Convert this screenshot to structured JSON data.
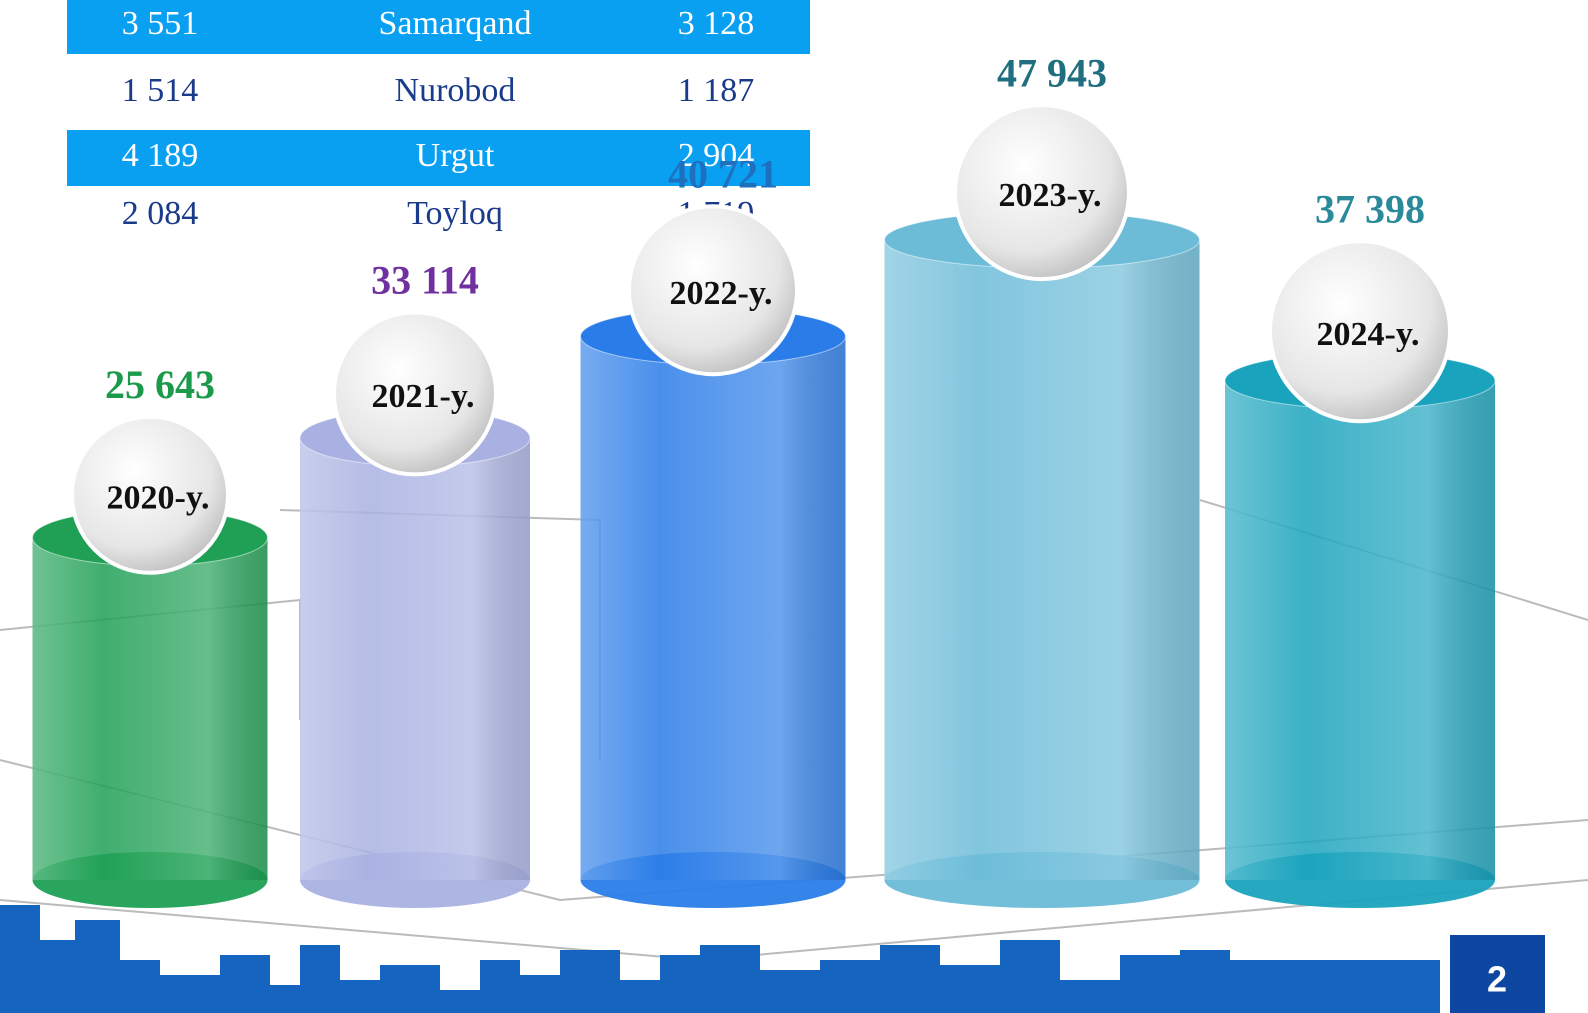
{
  "table": {
    "rows": [
      [
        "3 551",
        "Samarqand",
        "3 128"
      ],
      [
        "1 514",
        "Nurobod",
        "1 187"
      ],
      [
        "4 189",
        "Urgut",
        "2 904"
      ],
      [
        "2 084",
        "Toyloq",
        "1 719"
      ]
    ]
  },
  "chart_data": {
    "type": "cylinder",
    "categories": [
      "2020-y.",
      "2021-y.",
      "2022-y.",
      "2023-y.",
      "2024-y."
    ],
    "values": [
      25643,
      33114,
      40721,
      47943,
      37398
    ],
    "value_labels": [
      "25 643",
      "33 114",
      "40 721",
      "47 943",
      "37 398"
    ],
    "colors": [
      "#1fa055",
      "#a9b1e2",
      "#2a7de8",
      "#6cbcd8",
      "#1aa3bd"
    ],
    "label_colors": [
      "#1a9a4a",
      "#7030a0",
      "#1f6fbf",
      "#1f6f80",
      "#2a8a9a"
    ]
  },
  "page_number": "2"
}
